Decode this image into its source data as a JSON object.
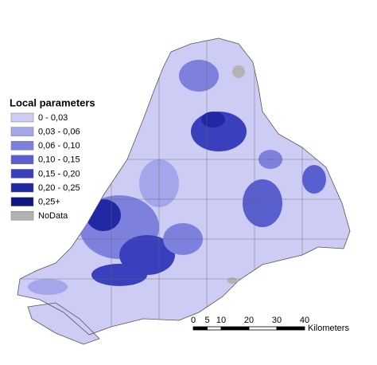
{
  "legend": {
    "title": "Local parameters",
    "items": [
      {
        "label": "0 - 0,03",
        "color": "#ccccf5"
      },
      {
        "label": "0,03 - 0,06",
        "color": "#a3a6ea"
      },
      {
        "label": "0,06 - 0,10",
        "color": "#7d80dd"
      },
      {
        "label": "0,10 - 0,15",
        "color": "#5a5fd0"
      },
      {
        "label": "0,15 - 0,20",
        "color": "#3a40bd"
      },
      {
        "label": "0,20 - 0,25",
        "color": "#2128a3"
      },
      {
        "label": "0,25+",
        "color": "#0f1783"
      },
      {
        "label": "NoData",
        "color": "#b3b3b3"
      }
    ]
  },
  "scale_bar": {
    "ticks": [
      0,
      5,
      10,
      20,
      30,
      40
    ],
    "unit": "Kilometers"
  }
}
